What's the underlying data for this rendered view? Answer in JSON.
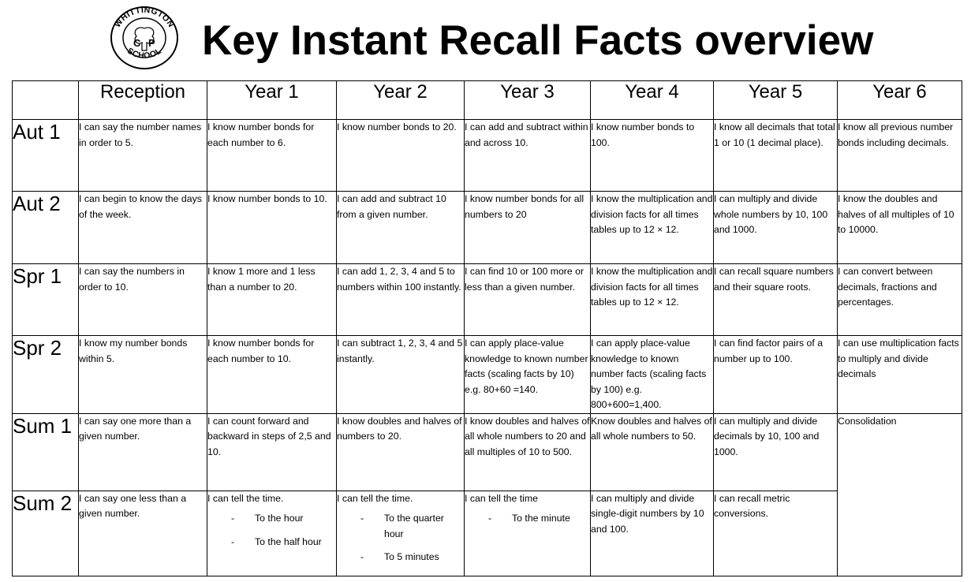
{
  "logo": {
    "top_text": "WHITTINGTON",
    "middle_left": "C",
    "middle_right": "P",
    "bottom_text": "SCHOOL"
  },
  "title": "Key Instant Recall Facts overview",
  "columns": [
    "Reception",
    "Year 1",
    "Year 2",
    "Year 3",
    "Year 4",
    "Year 5",
    "Year 6"
  ],
  "rows": [
    {
      "term": "Aut 1",
      "cells": [
        "I can say the number names in order to 5.",
        "I know number bonds for each number to 6.",
        "I know number bonds to 20.",
        "I can add and subtract within and across 10.",
        "I know number bonds to 100.",
        "I know all decimals that total 1 or 10 (1 decimal place).",
        "I know all previous number bonds including decimals."
      ]
    },
    {
      "term": "Aut 2",
      "cells": [
        "I can begin to know the days of the week.",
        "I know number bonds to 10.",
        "I can add and subtract 10 from a given number.",
        "I know number bonds for all numbers to 20",
        "I know the multiplication and division facts for all times tables up to 12 × 12.",
        "I can multiply and divide whole numbers by 10, 100 and 1000.",
        "I know the doubles and halves of all multiples of 10 to 10000."
      ]
    },
    {
      "term": "Spr 1",
      "cells": [
        "I can say the numbers in order to 10.",
        "I know 1 more and 1 less than a number to 20.",
        "I can add 1, 2, 3, 4 and 5 to numbers within 100 instantly.",
        "I can find 10 or 100 more or less than a given number.",
        "I know the multiplication and division facts for all times tables up to 12 × 12.",
        "I can recall square numbers and their square roots.",
        "I can convert between decimals, fractions and percentages."
      ]
    },
    {
      "term": "Spr 2",
      "cells": [
        "I know my number bonds within 5.",
        "I know number bonds for each number to 10.",
        "I can subtract 1, 2, 3, 4 and 5 instantly.",
        "I can apply place-value knowledge to known number facts (scaling facts by 10) e.g. 80+60 =140.",
        "I can apply place-value knowledge to known number facts (scaling facts by 100) e.g. 800+600=1,400.",
        "I can find factor pairs of a number up to 100.",
        "I can use multiplication facts to multiply and divide decimals"
      ]
    },
    {
      "term": "Sum 1",
      "cells": [
        "I can say one more than a given number.",
        "I can count forward and backward in steps of 2,5 and 10.",
        "I know doubles and halves of numbers to 20.",
        "I know doubles and halves of all whole numbers to 20 and all multiples of 10 to 500.",
        "Know doubles and halves of all whole numbers to 50.",
        "I can multiply and divide decimals by 10, 100 and 1000."
      ],
      "merged_last": "Consolidation"
    },
    {
      "term": "Sum 2",
      "cells": [
        "I can say one less than a given number.",
        "I can tell the time.",
        "I can tell the time.",
        "I can tell the time",
        "I can multiply and divide single-digit numbers by 10 and 100.",
        "I can recall metric conversions."
      ],
      "subitems": {
        "year1": [
          "To the hour",
          "To the half hour"
        ],
        "year2": [
          "To the quarter hour",
          "To 5 minutes"
        ],
        "year3": [
          "To the minute"
        ]
      }
    }
  ]
}
